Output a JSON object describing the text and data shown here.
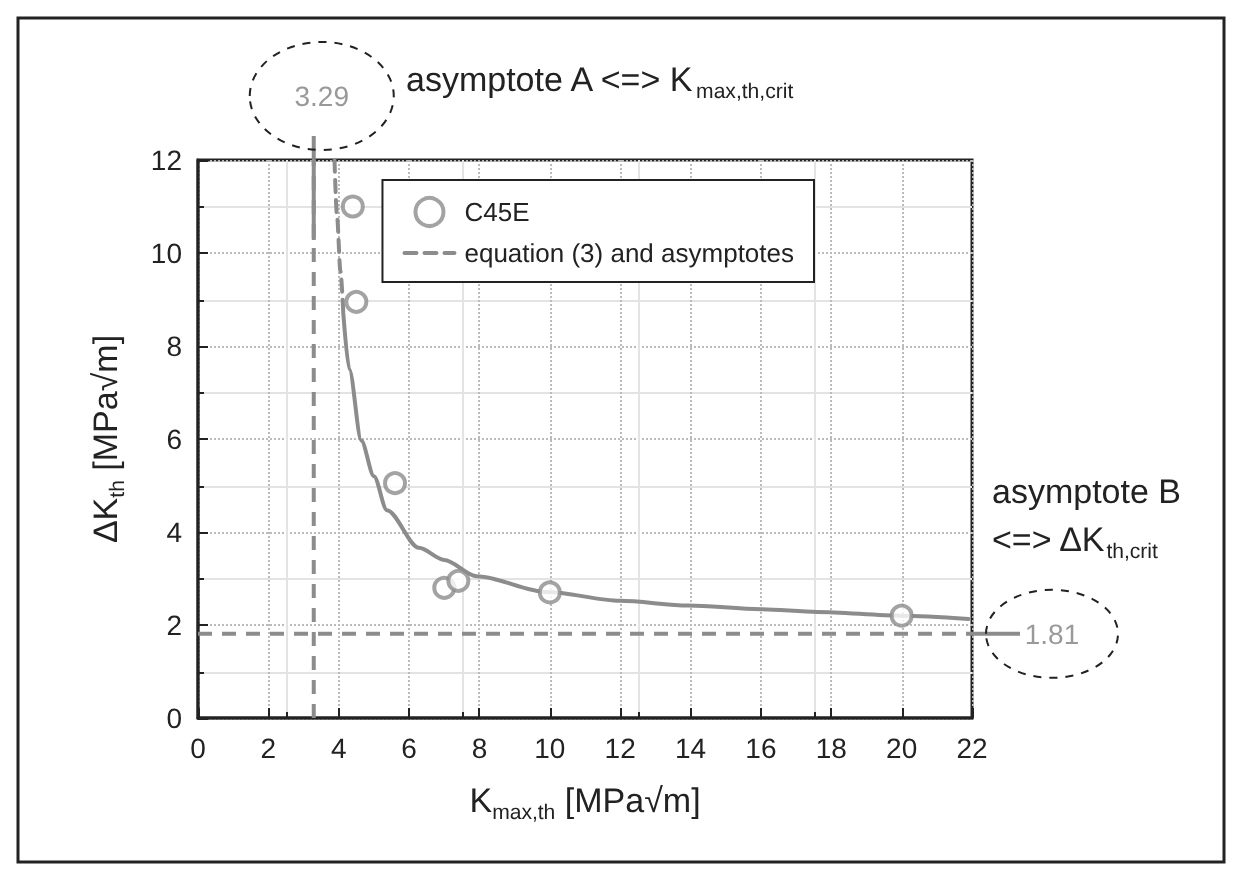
{
  "chart_data": {
    "type": "scatter",
    "xlabel": "K$_{max,th}$ [MPa√m]",
    "ylabel": "ΔK$_{th}$ [MPa√m]",
    "xlim": [
      0,
      22
    ],
    "xticks": [
      0,
      2,
      4,
      6,
      8,
      10,
      12,
      14,
      16,
      18,
      20,
      22
    ],
    "ylim": [
      0,
      12
    ],
    "yticks": [
      0,
      2,
      4,
      6,
      8,
      10,
      12
    ],
    "grid": true,
    "legend": "top right",
    "marker": "circle",
    "series": [
      {
        "name": "C45E",
        "color": "#8c8c8c",
        "x": [
          4.4,
          4.5,
          5.6,
          7.0,
          7.4,
          10,
          20
        ],
        "values": [
          11,
          8.95,
          5.05,
          2.8,
          2.95,
          2.7,
          2.2
        ]
      },
      {
        "name": "equation (3) and asymptotes",
        "type": "line",
        "color": "#8c8c8c",
        "line_style": "dashed",
        "marker": "none",
        "x": [
          3.88,
          3.95,
          4.05,
          4.13
        ],
        "values": [
          12,
          10.8,
          9.6,
          8.7
        ]
      },
      {
        "type": "line",
        "color": "#8c8c8c",
        "line_style": "solid",
        "marker": "none",
        "x": [
          4.13,
          4.3,
          4.64,
          5.0,
          5.37,
          6.28,
          7.0,
          7.92,
          9.92,
          12,
          13.93,
          16,
          17.6,
          20,
          21.9
        ],
        "values": [
          8.7,
          7.5,
          5.97,
          5.2,
          4.47,
          3.66,
          3.4,
          3.05,
          2.71,
          2.52,
          2.42,
          2.34,
          2.28,
          2.2,
          2.13
        ]
      }
    ],
    "ref_lines": [
      {
        "axis": "x",
        "value": 3.29,
        "label": "3.29",
        "color": "#8c8c8c",
        "line_style": "dashed"
      },
      {
        "axis": "y",
        "value": 1.81,
        "label": "1.81",
        "color": "#8c8c8c",
        "line_style": "dashed"
      }
    ],
    "annotations": [
      "asymptote A <=> K$_{max,th,crit}$",
      "asymptote B\n<=> ΔK$_{th,crit}$"
    ]
  }
}
